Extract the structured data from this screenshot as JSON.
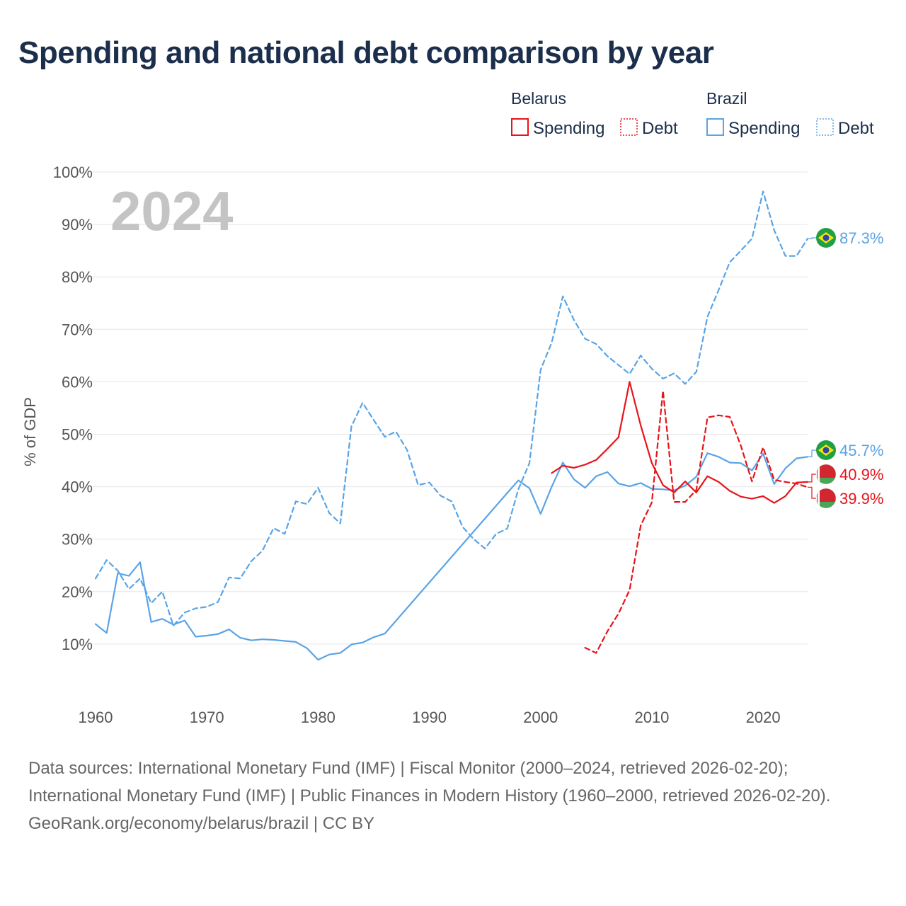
{
  "title": "Spending and national debt comparison by year",
  "legend": {
    "groups": [
      {
        "country": "Belarus",
        "color": "#e8131a",
        "spending_label": "Spending",
        "debt_label": "Debt"
      },
      {
        "country": "Brazil",
        "color": "#5aa4e6",
        "spending_label": "Spending",
        "debt_label": "Debt"
      }
    ]
  },
  "year_watermark": "2024",
  "footer": {
    "sources": "Data sources: International Monetary Fund (IMF) | Fiscal Monitor (2000–2024, retrieved 2026-02-20); International Monetary Fund (IMF) | Public Finances in Modern History (1960–2000, retrieved 2026-02-20).",
    "credit": "GeoRank.org/economy/belarus/brazil | CC BY"
  },
  "chart_data": {
    "type": "line",
    "title": "Spending and national debt comparison by year",
    "xlabel": "",
    "ylabel": "% of GDP",
    "xlim": [
      1960,
      2024
    ],
    "ylim": [
      0,
      100
    ],
    "grid": true,
    "x_ticks": [
      1960,
      1970,
      1980,
      1990,
      2000,
      2010,
      2020
    ],
    "x_tick_labels": [
      "1960",
      "1970",
      "1980",
      "1990",
      "2000",
      "2010",
      "2020"
    ],
    "y_ticks": [
      10,
      20,
      30,
      40,
      50,
      60,
      70,
      80,
      90,
      100
    ],
    "y_tick_labels": [
      "10%",
      "20%",
      "30%",
      "40%",
      "50%",
      "60%",
      "70%",
      "80%",
      "90%",
      "100%"
    ],
    "series": [
      {
        "name": "Brazil Debt",
        "country": "Brazil",
        "kind": "debt",
        "style": "dashed",
        "color": "#5aa4e6",
        "end_label": "87.3%",
        "end_value": 87.3,
        "points": [
          [
            1960,
            22.5
          ],
          [
            1961,
            26
          ],
          [
            1962,
            24
          ],
          [
            1963,
            20.5
          ],
          [
            1964,
            22.5
          ],
          [
            1965,
            17.8
          ],
          [
            1966,
            20
          ],
          [
            1967,
            13.5
          ],
          [
            1968,
            16
          ],
          [
            1969,
            16.8
          ],
          [
            1970,
            17.1
          ],
          [
            1971,
            18
          ],
          [
            1972,
            22.7
          ],
          [
            1973,
            22.5
          ],
          [
            1974,
            25.8
          ],
          [
            1975,
            27.8
          ],
          [
            1976,
            32.1
          ],
          [
            1977,
            31
          ],
          [
            1978,
            37.2
          ],
          [
            1979,
            36.7
          ],
          [
            1980,
            39.8
          ],
          [
            1981,
            35
          ],
          [
            1982,
            33
          ],
          [
            1983,
            51.5
          ],
          [
            1984,
            56
          ],
          [
            1985,
            52.7
          ],
          [
            1986,
            49.5
          ],
          [
            1987,
            50.5
          ],
          [
            1988,
            47
          ],
          [
            1989,
            40.3
          ],
          [
            1990,
            40.8
          ],
          [
            1991,
            38.3
          ],
          [
            1992,
            37.2
          ],
          [
            1993,
            32.3
          ],
          [
            1994,
            30
          ],
          [
            1995,
            28.2
          ],
          [
            1996,
            31
          ],
          [
            1997,
            32
          ],
          [
            1998,
            39.5
          ],
          [
            1999,
            44.5
          ],
          [
            2000,
            62.3
          ],
          [
            2001,
            67.5
          ],
          [
            2002,
            76.3
          ],
          [
            2003,
            71.8
          ],
          [
            2004,
            68.2
          ],
          [
            2005,
            67.2
          ],
          [
            2006,
            64.9
          ],
          [
            2007,
            63.2
          ],
          [
            2008,
            61.5
          ],
          [
            2009,
            65
          ],
          [
            2010,
            62.5
          ],
          [
            2011,
            60.6
          ],
          [
            2012,
            61.6
          ],
          [
            2013,
            59.6
          ],
          [
            2014,
            61.9
          ],
          [
            2015,
            72.4
          ],
          [
            2016,
            77.5
          ],
          [
            2017,
            82.8
          ],
          [
            2018,
            85
          ],
          [
            2019,
            87.3
          ],
          [
            2020,
            96.3
          ],
          [
            2021,
            88.9
          ],
          [
            2022,
            84
          ],
          [
            2023,
            84
          ],
          [
            2024,
            87.3
          ]
        ]
      },
      {
        "name": "Brazil Spending",
        "country": "Brazil",
        "kind": "spending",
        "style": "solid",
        "color": "#5aa4e6",
        "end_label": "45.7%",
        "end_value": 45.7,
        "points": [
          [
            1960,
            13.8
          ],
          [
            1961,
            12.1
          ],
          [
            1962,
            23.5
          ],
          [
            1963,
            23
          ],
          [
            1964,
            25.6
          ],
          [
            1965,
            14.2
          ],
          [
            1966,
            14.8
          ],
          [
            1967,
            13.7
          ],
          [
            1968,
            14.5
          ],
          [
            1969,
            11.4
          ],
          [
            1970,
            11.6
          ],
          [
            1971,
            11.9
          ],
          [
            1972,
            12.8
          ],
          [
            1973,
            11.2
          ],
          [
            1974,
            10.7
          ],
          [
            1975,
            10.9
          ],
          [
            1976,
            10.8
          ],
          [
            1977,
            10.6
          ],
          [
            1978,
            10.4
          ],
          [
            1979,
            9.2
          ],
          [
            1980,
            7
          ],
          [
            1981,
            8
          ],
          [
            1982,
            8.3
          ],
          [
            1983,
            9.9
          ],
          [
            1984,
            10.3
          ],
          [
            1985,
            11.3
          ],
          [
            1986,
            12
          ],
          [
            1997,
            38.8
          ],
          [
            1998,
            41.2
          ],
          [
            1999,
            39.7
          ],
          [
            2000,
            34.8
          ],
          [
            2001,
            40
          ],
          [
            2002,
            44.6
          ],
          [
            2003,
            41.4
          ],
          [
            2004,
            39.8
          ],
          [
            2005,
            42
          ],
          [
            2006,
            42.8
          ],
          [
            2007,
            40.6
          ],
          [
            2008,
            40.1
          ],
          [
            2009,
            40.7
          ],
          [
            2010,
            39.6
          ],
          [
            2011,
            39.5
          ],
          [
            2012,
            39.3
          ],
          [
            2013,
            40.2
          ],
          [
            2014,
            41.9
          ],
          [
            2015,
            46.4
          ],
          [
            2016,
            45.7
          ],
          [
            2017,
            44.6
          ],
          [
            2018,
            44.5
          ],
          [
            2019,
            43.1
          ],
          [
            2020,
            46.3
          ],
          [
            2021,
            40.5
          ],
          [
            2022,
            43.5
          ],
          [
            2023,
            45.4
          ],
          [
            2024,
            45.7
          ]
        ]
      },
      {
        "name": "Belarus Spending",
        "country": "Belarus",
        "kind": "spending",
        "style": "solid",
        "color": "#e8131a",
        "end_label": "40.9%",
        "end_value": 40.9,
        "points": [
          [
            2001,
            42.6
          ],
          [
            2002,
            44
          ],
          [
            2003,
            43.6
          ],
          [
            2004,
            44.2
          ],
          [
            2005,
            45.1
          ],
          [
            2006,
            47.2
          ],
          [
            2007,
            49.4
          ],
          [
            2008,
            60
          ],
          [
            2009,
            51.7
          ],
          [
            2010,
            44.5
          ],
          [
            2011,
            40.3
          ],
          [
            2012,
            38.9
          ],
          [
            2013,
            41
          ],
          [
            2014,
            38.9
          ],
          [
            2015,
            42
          ],
          [
            2016,
            40.9
          ],
          [
            2017,
            39.2
          ],
          [
            2018,
            38.1
          ],
          [
            2019,
            37.7
          ],
          [
            2020,
            38.2
          ],
          [
            2021,
            36.9
          ],
          [
            2022,
            38.2
          ],
          [
            2023,
            40.8
          ],
          [
            2024,
            40.9
          ]
        ]
      },
      {
        "name": "Belarus Debt",
        "country": "Belarus",
        "kind": "debt",
        "style": "dashed",
        "color": "#e8131a",
        "end_label": "39.9%",
        "end_value": 39.9,
        "points": [
          [
            2004,
            9.3
          ],
          [
            2005,
            8.3
          ],
          [
            2006,
            12.4
          ],
          [
            2007,
            15.8
          ],
          [
            2008,
            20.3
          ],
          [
            2009,
            32.6
          ],
          [
            2010,
            37
          ],
          [
            2011,
            58.3
          ],
          [
            2012,
            37.1
          ],
          [
            2013,
            37.1
          ],
          [
            2014,
            39.4
          ],
          [
            2015,
            53.2
          ],
          [
            2016,
            53.6
          ],
          [
            2017,
            53.3
          ],
          [
            2018,
            47.8
          ],
          [
            2019,
            41
          ],
          [
            2020,
            47.5
          ],
          [
            2021,
            41.3
          ],
          [
            2022,
            40.9
          ],
          [
            2023,
            40.6
          ],
          [
            2024,
            39.9
          ]
        ]
      }
    ]
  }
}
